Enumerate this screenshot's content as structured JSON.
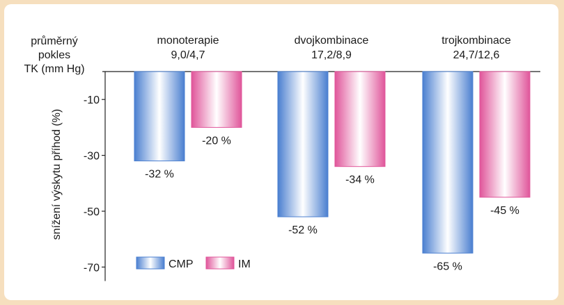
{
  "chart_data": {
    "type": "bar",
    "header_label_lines": [
      "průměrný",
      "pokles",
      "TK (mm Hg)"
    ],
    "ylabel": "snížení výskytu příhod (%)",
    "ylim": [
      -75,
      0
    ],
    "yticks": [
      -10,
      -30,
      -50,
      -70
    ],
    "ytick_labels": [
      "-10",
      "-30",
      "-50",
      "-70"
    ],
    "categories": [
      {
        "name": "monoterapie",
        "sub": "9,0/4,7"
      },
      {
        "name": "dvojkombinace",
        "sub": "17,2/8,9"
      },
      {
        "name": "trojkombinace",
        "sub": "24,7/12,6"
      }
    ],
    "series": [
      {
        "name": "CMP",
        "color": "#4a7fd0",
        "values": [
          -32,
          -52,
          -65
        ],
        "labels": [
          "-32 %",
          "-52 %",
          "-65 %"
        ]
      },
      {
        "name": "IM",
        "color": "#e0559a",
        "values": [
          -20,
          -34,
          -45
        ],
        "labels": [
          "-20 %",
          "-34 %",
          "-45 %"
        ]
      }
    ],
    "legend_position": "bottom-left",
    "grid": false
  },
  "colors": {
    "background": "#f6dfbe",
    "panel": "#ffffff",
    "cmp": "#4a7fd0",
    "im": "#e0559a"
  }
}
